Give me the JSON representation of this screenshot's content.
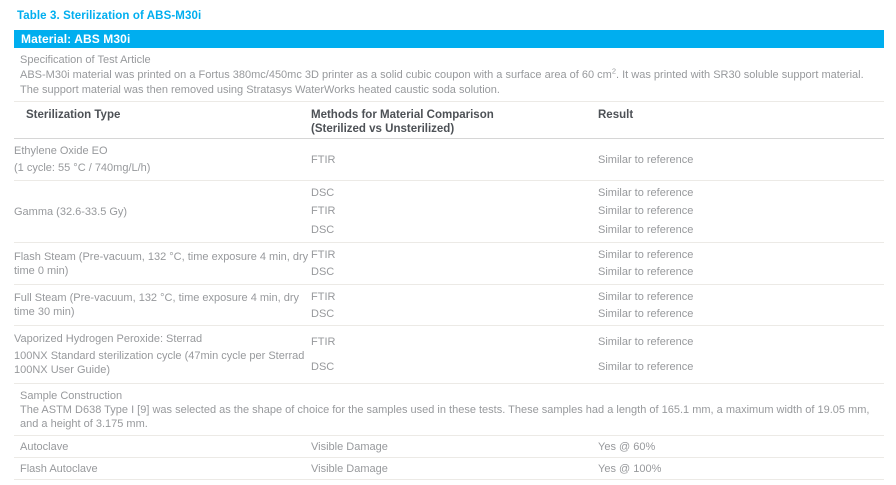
{
  "page": {
    "title": "Table 3. Sterilization of ABS-M30i",
    "material_header": "Material: ABS M30i"
  },
  "colors": {
    "accent": "#00aeef",
    "heading_text": "#4d5156",
    "body_text": "#97999c"
  },
  "spec": {
    "heading": "Specification of Test Article",
    "body_before_sup": "ABS-M30i material was printed on a Fortus 380mc/450mc 3D printer as a solid cubic coupon with a surface area of 60 cm",
    "sup": "2",
    "body_after_sup": ". It was printed with SR30 soluble support material. The support material was then removed using Stratasys WaterWorks heated caustic soda solution."
  },
  "table": {
    "columns": {
      "col1": "Sterilization Type",
      "col2_line1": "Methods for Material Comparison",
      "col2_line2": "(Sterilized vs Unsterilized)",
      "col3": "Result"
    },
    "sections": [
      {
        "type_lines": [
          "Ethylene Oxide EO",
          "(1 cycle: 55 °C / 740mg/L/h)"
        ],
        "rows": [
          {
            "method": "FTIR",
            "result": "Similar to reference"
          }
        ]
      },
      {
        "type_lines": [
          "Gamma (32.6-33.5 Gy)"
        ],
        "rows": [
          {
            "method": "DSC",
            "result": "Similar to reference"
          },
          {
            "method": "FTIR",
            "result": "Similar to reference"
          },
          {
            "method": "DSC",
            "result": "Similar to reference"
          }
        ]
      },
      {
        "type_lines": [
          "Flash Steam (Pre-vacuum, 132 °C, time exposure 4 min, dry time 0 min)"
        ],
        "rows": [
          {
            "method": "FTIR",
            "result": "Similar to reference"
          },
          {
            "method": "DSC",
            "result": "Similar to reference"
          }
        ]
      },
      {
        "type_lines": [
          "Full Steam (Pre-vacuum, 132 °C, time exposure 4 min, dry time 30 min)"
        ],
        "rows": [
          {
            "method": "FTIR",
            "result": "Similar to reference"
          },
          {
            "method": "DSC",
            "result": "Similar to reference"
          }
        ]
      },
      {
        "type_lines": [
          "Vaporized Hydrogen Peroxide: Sterrad",
          "100NX Standard sterilization cycle (47min cycle per Sterrad 100NX User Guide)"
        ],
        "rows": [
          {
            "method": "FTIR",
            "result": "Similar to reference"
          },
          {
            "method": "DSC",
            "result": "Similar to reference"
          }
        ]
      }
    ],
    "note": {
      "heading": "Sample Construction",
      "text": "The ASTM D638 Type I [9] was selected as the shape of choice for the samples used in these tests. These samples had a length of 165.1 mm, a maximum width of 19.05 mm, and a height of 3.175 mm."
    },
    "damage_rows": [
      {
        "type": "Autoclave",
        "method": "Visible Damage",
        "result": "Yes @ 60%"
      },
      {
        "type": "Flash Autoclave",
        "method": "Visible Damage",
        "result": "Yes @ 100%"
      }
    ]
  }
}
